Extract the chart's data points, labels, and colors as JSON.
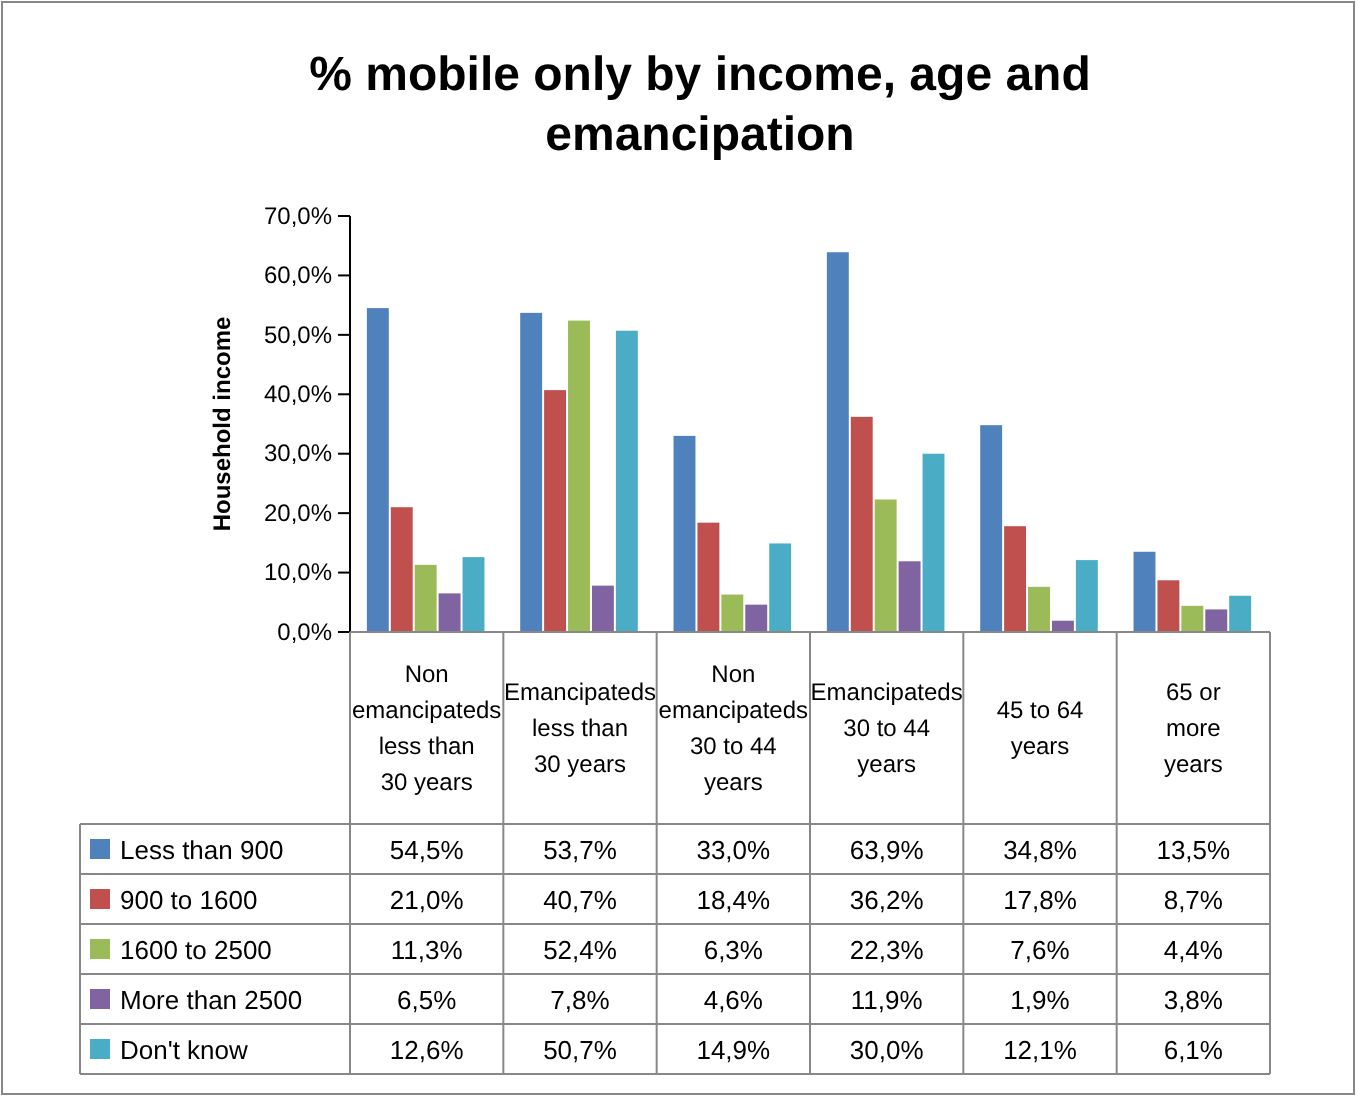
{
  "chart_data": {
    "type": "bar",
    "title": "% mobile only by income, age and emancipation",
    "ylabel": "Household income",
    "categories": [
      "Non emancipateds less than 30 years",
      "Emancipateds less than 30 years",
      "Non emancipateds 30 to 44 years",
      "Emancipateds 30 to 44 years",
      "45 to 64 years",
      "65 or more years"
    ],
    "series": [
      {
        "name": "Less than 900",
        "color": "#4f81bd",
        "values": [
          54.5,
          53.7,
          33.0,
          63.9,
          34.8,
          13.5
        ],
        "value_labels": [
          "54,5%",
          "53,7%",
          "33,0%",
          "63,9%",
          "34,8%",
          "13,5%"
        ]
      },
      {
        "name": "900 to 1600",
        "color": "#c0504d",
        "values": [
          21.0,
          40.7,
          18.4,
          36.2,
          17.8,
          8.7
        ],
        "value_labels": [
          "21,0%",
          "40,7%",
          "18,4%",
          "36,2%",
          "17,8%",
          "8,7%"
        ]
      },
      {
        "name": "1600 to 2500",
        "color": "#9bbb59",
        "values": [
          11.3,
          52.4,
          6.3,
          22.3,
          7.6,
          4.4
        ],
        "value_labels": [
          "11,3%",
          "52,4%",
          "6,3%",
          "22,3%",
          "7,6%",
          "4,4%"
        ]
      },
      {
        "name": "More than 2500",
        "color": "#8064a2",
        "values": [
          6.5,
          7.8,
          4.6,
          11.9,
          1.9,
          3.8
        ],
        "value_labels": [
          "6,5%",
          "7,8%",
          "4,6%",
          "11,9%",
          "1,9%",
          "3,8%"
        ]
      },
      {
        "name": "Don't know",
        "color": "#4bacc6",
        "values": [
          12.6,
          50.7,
          14.9,
          30.0,
          12.1,
          6.1
        ],
        "value_labels": [
          "12,6%",
          "50,7%",
          "14,9%",
          "30,0%",
          "12,1%",
          "6,1%"
        ]
      }
    ],
    "ylim": [
      0,
      70
    ],
    "yticks": [
      {
        "value": 0,
        "label": "0,0%"
      },
      {
        "value": 10,
        "label": "10,0%"
      },
      {
        "value": 20,
        "label": "20,0%"
      },
      {
        "value": 30,
        "label": "30,0%"
      },
      {
        "value": 40,
        "label": "40,0%"
      },
      {
        "value": 50,
        "label": "50,0%"
      },
      {
        "value": 60,
        "label": "60,0%"
      },
      {
        "value": 70,
        "label": "70,0%"
      }
    ],
    "legend": "bottom left"
  }
}
